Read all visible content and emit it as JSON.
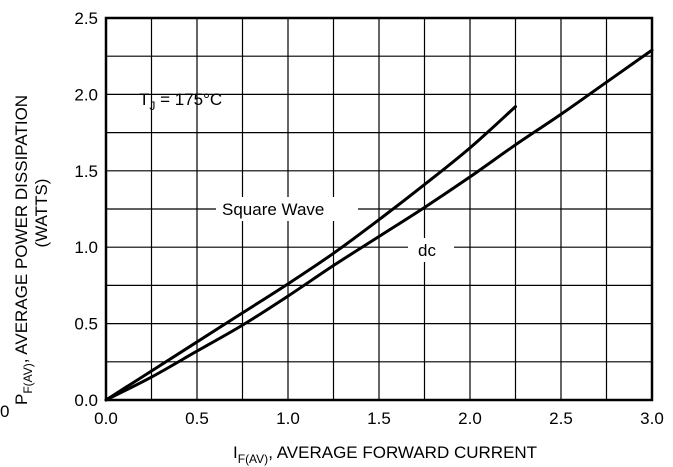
{
  "chart_data": {
    "type": "line",
    "title": "",
    "xlabel": {
      "symbol": "I",
      "subscript": "F(AV)",
      "text": ", AVERAGE FORWARD CURRENT"
    },
    "ylabel": {
      "symbol": "P",
      "subscript": "F(AV)",
      "text": ", AVERAGE POWER DISSIPATION",
      "line2": "(WATTS)"
    },
    "xlim": [
      0,
      3.0
    ],
    "ylim": [
      0,
      2.5
    ],
    "x_ticks": [
      "0.0",
      "0.5",
      "1.0",
      "1.5",
      "2.0",
      "2.5",
      "3.0"
    ],
    "y_ticks": [
      "0.0",
      "0.5",
      "1.0",
      "1.5",
      "2.0",
      "2.5"
    ],
    "x_origin_extra_label": "0",
    "grid": true,
    "grid_step_x": 0.25,
    "grid_step_y": 0.25,
    "annotations": {
      "condition": {
        "prefix": "T",
        "subscript": "J",
        "text": " = 175°C"
      }
    },
    "series": [
      {
        "name": "Square Wave",
        "x": [
          0,
          0.25,
          0.5,
          0.75,
          1.0,
          1.25,
          1.5,
          1.75,
          2.0,
          2.25
        ],
        "y": [
          0,
          0.19,
          0.38,
          0.57,
          0.76,
          0.96,
          1.18,
          1.41,
          1.65,
          1.92
        ]
      },
      {
        "name": "dc",
        "x": [
          0,
          0.25,
          0.5,
          0.75,
          1.0,
          1.25,
          1.5,
          1.75,
          2.0,
          2.25,
          2.5,
          2.75,
          3.0
        ],
        "y": [
          0,
          0.15,
          0.32,
          0.49,
          0.68,
          0.88,
          1.07,
          1.26,
          1.46,
          1.67,
          1.87,
          2.08,
          2.29
        ]
      }
    ]
  }
}
